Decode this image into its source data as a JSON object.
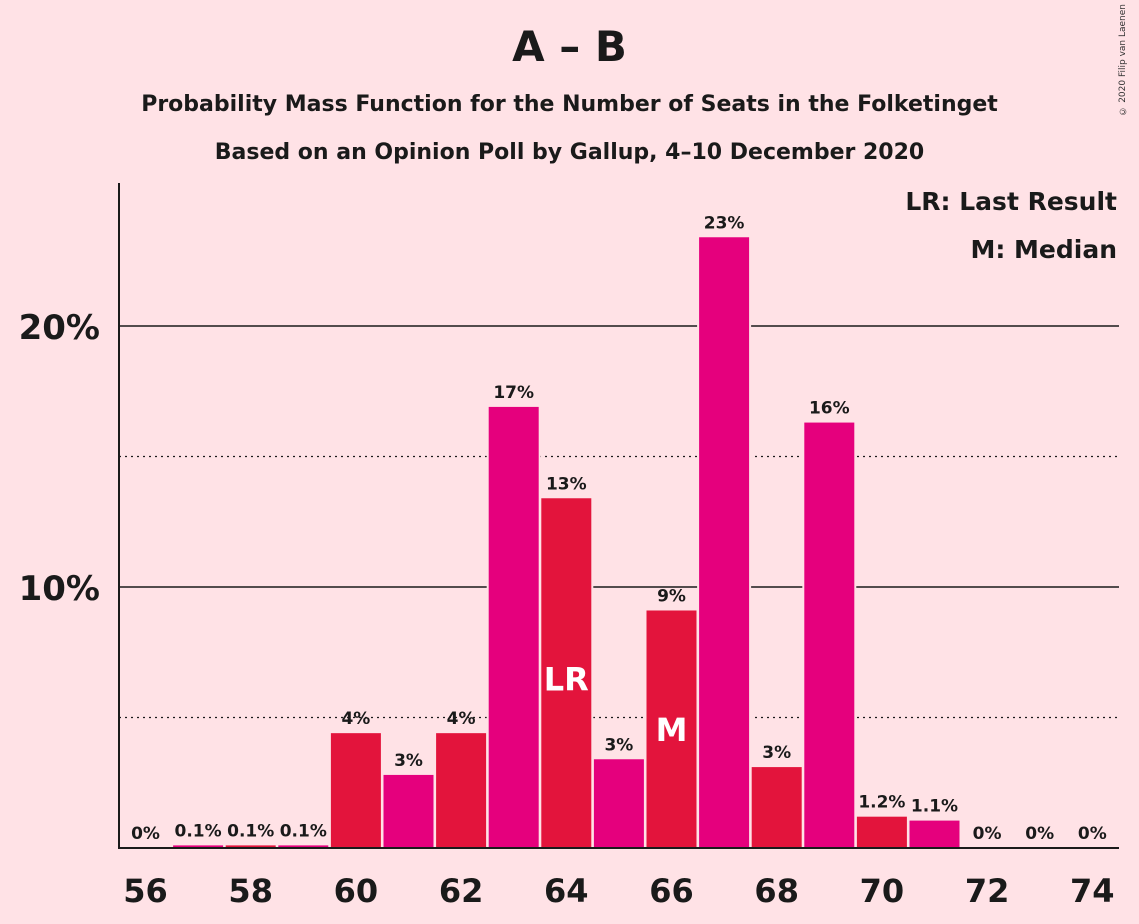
{
  "header": {
    "title": "A – B",
    "subtitle_line1": "Probability Mass Function for the Number of Seats in the Folketinget",
    "subtitle_line2": "Based on an Opinion Poll by Gallup, 4–10 December 2020",
    "copyright": "© 2020 Filip van Laenen"
  },
  "chart_data": {
    "type": "bar",
    "title": "A – B",
    "x": [
      56,
      57,
      58,
      59,
      60,
      61,
      62,
      63,
      64,
      65,
      66,
      67,
      68,
      69,
      70,
      71,
      72,
      73,
      74
    ],
    "values": [
      0,
      0.1,
      0.1,
      0.1,
      4.4,
      2.8,
      4.4,
      16.9,
      13.4,
      3.4,
      9.1,
      23.4,
      3.1,
      16.3,
      1.2,
      1.05,
      0,
      0,
      0
    ],
    "value_labels": [
      "0%",
      "0.1%",
      "0.1%",
      "0.1%",
      "4%",
      "3%",
      "4%",
      "17%",
      "13%",
      "3%",
      "9%",
      "23%",
      "3%",
      "16%",
      "1.2%",
      "1.1%",
      "0%",
      "0%",
      "0%"
    ],
    "x_tick_labels": [
      "56",
      "58",
      "60",
      "62",
      "64",
      "66",
      "68",
      "70",
      "72",
      "74"
    ],
    "x_tick_values": [
      56,
      58,
      60,
      62,
      64,
      66,
      68,
      70,
      72,
      74
    ],
    "y_tick_labels": [
      "10%",
      "20%"
    ],
    "y_tick_values": [
      10,
      20
    ],
    "y_dotted_gridlines": [
      5,
      15
    ],
    "ylim": [
      0,
      25.5
    ],
    "colors": {
      "even": "#E3143C",
      "odd": "#E5007D",
      "background": "#FFE2E6"
    },
    "markers": [
      {
        "x": 64,
        "text": "LR"
      },
      {
        "x": 66,
        "text": "M"
      }
    ],
    "legend": {
      "placement": "top-right",
      "items": [
        "LR: Last Result",
        "M: Median"
      ]
    }
  }
}
